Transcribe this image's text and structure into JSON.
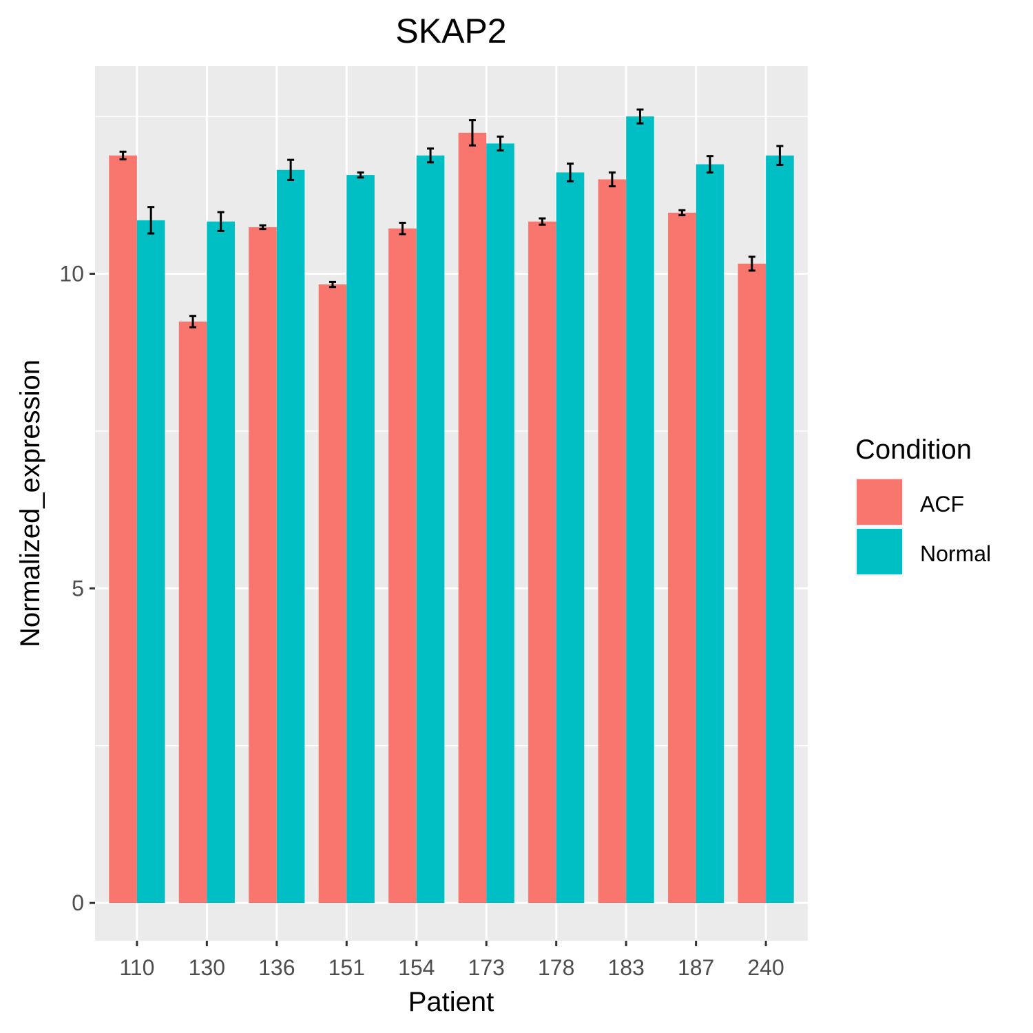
{
  "chart_data": {
    "type": "bar",
    "title": "SKAP2",
    "xlabel": "Patient",
    "ylabel": "Normalized_expression",
    "categories": [
      "110",
      "130",
      "136",
      "151",
      "154",
      "173",
      "178",
      "183",
      "187",
      "240"
    ],
    "ylim": [
      -0.6,
      13.3
    ],
    "yticks": [
      0,
      5,
      10
    ],
    "grid": true,
    "legend": {
      "title": "Condition",
      "position": "right"
    },
    "series": [
      {
        "name": "ACF",
        "color": "#F8766D",
        "values": [
          11.88,
          9.24,
          10.74,
          9.83,
          10.72,
          12.24,
          10.83,
          11.5,
          10.97,
          10.16
        ],
        "errors": [
          0.06,
          0.09,
          0.03,
          0.04,
          0.09,
          0.2,
          0.05,
          0.11,
          0.04,
          0.11
        ]
      },
      {
        "name": "Normal",
        "color": "#00BFC4",
        "values": [
          10.85,
          10.83,
          11.65,
          11.57,
          11.88,
          12.07,
          11.61,
          12.5,
          11.74,
          11.88
        ],
        "errors": [
          0.21,
          0.15,
          0.16,
          0.04,
          0.11,
          0.11,
          0.14,
          0.11,
          0.13,
          0.15
        ]
      }
    ]
  }
}
